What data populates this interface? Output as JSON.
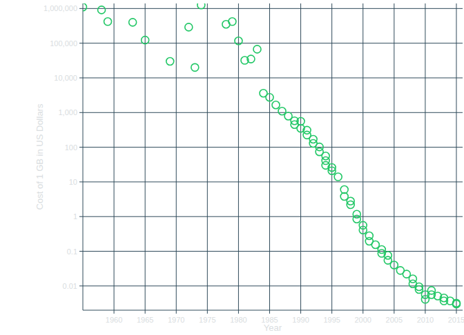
{
  "chart_data": {
    "type": "scatter",
    "x_label": "Year",
    "y_label": "Cost of 1 GB in US Dollars",
    "log": "y",
    "grid": true,
    "marker": "open-circle",
    "color": "#22c766",
    "xlim": [
      1955,
      2016
    ],
    "xticks": [
      1960,
      1965,
      1970,
      1975,
      1980,
      1985,
      1990,
      1995,
      2000,
      2005,
      2010,
      2015
    ],
    "ylim": [
      0.002,
      1400000
    ],
    "yticks": [
      0.01,
      0.1,
      1,
      10,
      100,
      {
        "value": 1000,
        "label": "1,000"
      },
      {
        "value": 10000,
        "label": "10,000"
      },
      {
        "value": 100000,
        "label": "100,000"
      },
      {
        "value": 1000000,
        "label": "1,000,000"
      }
    ],
    "x": [
      1955,
      1958,
      1959,
      1963,
      1965,
      1969,
      1972,
      1973,
      1974,
      1978,
      1979,
      1980,
      1981,
      1982,
      1983,
      1984,
      1985,
      1986,
      1987,
      1988,
      1989,
      1989,
      1990,
      1990,
      1991,
      1991,
      1992,
      1992,
      1993,
      1993,
      1994,
      1994,
      1994,
      1995,
      1995,
      1996,
      1997,
      1997,
      1998,
      1998,
      1999,
      1999,
      2000,
      2000,
      2001,
      2001,
      2002,
      2003,
      2003,
      2004,
      2004,
      2005,
      2006,
      2007,
      2008,
      2008,
      2009,
      2009,
      2010,
      2010,
      2011,
      2011,
      2012,
      2013,
      2013,
      2014,
      2015,
      2015
    ],
    "values": [
      1100000,
      910000,
      420000,
      400000,
      123000,
      30000,
      290000,
      20000,
      1260000,
      350000,
      420000,
      117000,
      32000,
      35000,
      67000,
      3600,
      2750,
      1660,
      1100,
      790,
      580,
      450,
      560,
      350,
      310,
      225,
      170,
      129,
      102,
      74,
      56,
      41,
      30,
      26,
      21,
      14,
      6.0,
      3.8,
      2.8,
      2.2,
      1.17,
      0.85,
      0.56,
      0.41,
      0.28,
      0.195,
      0.155,
      0.112,
      0.087,
      0.076,
      0.055,
      0.04,
      0.028,
      0.022,
      0.016,
      0.0115,
      0.0095,
      0.0079,
      0.0056,
      0.0041,
      0.0074,
      0.0056,
      0.0051,
      0.0045,
      0.0037,
      0.0037,
      0.0032,
      0.003
    ]
  }
}
